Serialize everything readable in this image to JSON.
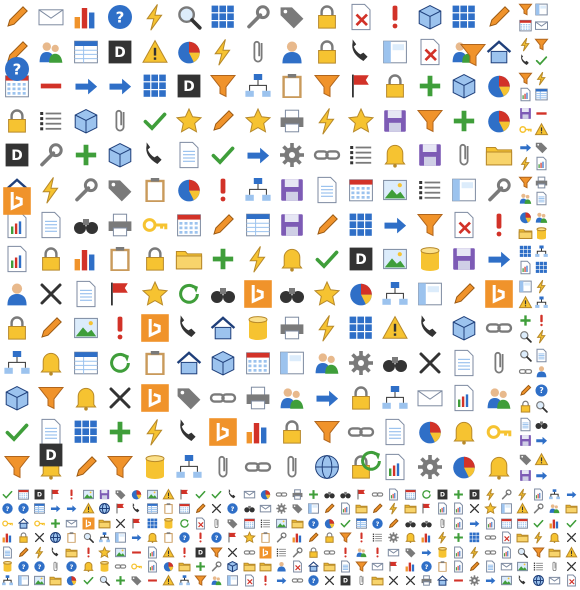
{
  "sheet": {
    "title": "",
    "background": "#ffffff",
    "grid": [
      {
        "band": "large-icons-32",
        "columns": 16,
        "rows": 14
      },
      {
        "band": "small-icons-16",
        "columns": 36,
        "rows": 7
      }
    ],
    "palette": {
      "paper": "#ffffff",
      "paper_edge": "#7d8aa0",
      "blue": "#2f6fc7",
      "light_blue": "#9cc3ee",
      "navy": "#1f3f7a",
      "green": "#3f9e3a",
      "red": "#d23228",
      "orange": "#f0932b",
      "yellow": "#f6c331",
      "gray": "#7a7a7a",
      "dark": "#333333",
      "purple": "#7d5bb5"
    },
    "icon_kinds": [
      "folder-icon",
      "document-icon",
      "table-icon",
      "grid-icon",
      "chart-icon",
      "bar-chart-icon",
      "pie-chart-icon",
      "calendar-icon",
      "users-icon",
      "user-icon",
      "gear-icon",
      "funnel-icon",
      "help-icon",
      "save-icon",
      "delete-icon",
      "x-icon",
      "check-icon",
      "arrow-icon",
      "refresh-icon",
      "link-icon",
      "lock-icon",
      "star-icon",
      "lightning-icon",
      "clipboard-icon",
      "pencil-icon",
      "magnifier-icon",
      "binoculars-icon",
      "phone-icon",
      "envelope-icon",
      "tag-icon",
      "flag-icon",
      "database-icon",
      "cube-icon",
      "layout-icon",
      "list-icon",
      "image-icon",
      "bell-icon",
      "plus-icon",
      "minus-icon",
      "exclamation-icon",
      "globe-icon",
      "printer-icon",
      "key-icon",
      "wrench-icon",
      "hierarchy-icon",
      "bing-icon",
      "office-logo-icon",
      "paperclip-icon",
      "warning-icon",
      "home-icon"
    ]
  }
}
